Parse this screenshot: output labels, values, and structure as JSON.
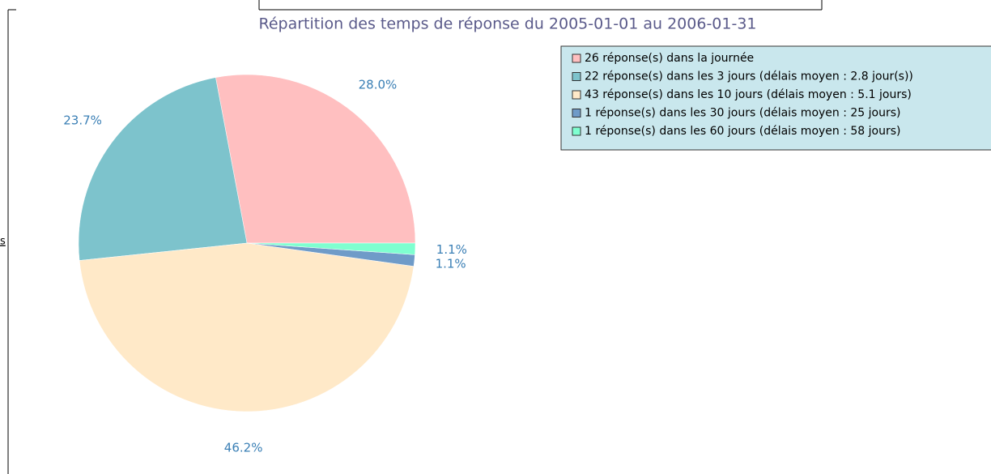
{
  "side_text": "s",
  "chart_data": {
    "type": "pie",
    "title": "Répartition des temps de réponse du 2005-01-01 au 2006-01-31",
    "categories": [
      "26 réponse(s) dans la journée",
      "22 réponse(s) dans les 3 jours (délais moyen : 2.8 jour(s))",
      "43 réponse(s) dans les 10 jours (délais moyen : 5.1 jours)",
      "1 réponse(s) dans les 30 jours (délais moyen : 25 jours)",
      "1 réponse(s) dans les 60 jours (délais moyen : 58 jours)"
    ],
    "values": [
      28.0,
      23.7,
      46.2,
      1.1,
      1.1
    ],
    "value_labels": [
      "28.0%",
      "23.7%",
      "46.2%",
      "1.1%",
      "1.1%"
    ],
    "colors": [
      "#ffbfc0",
      "#7dc3cc",
      "#ffe9c8",
      "#6f9bc8",
      "#7fffd0"
    ],
    "legend": "top-right"
  }
}
